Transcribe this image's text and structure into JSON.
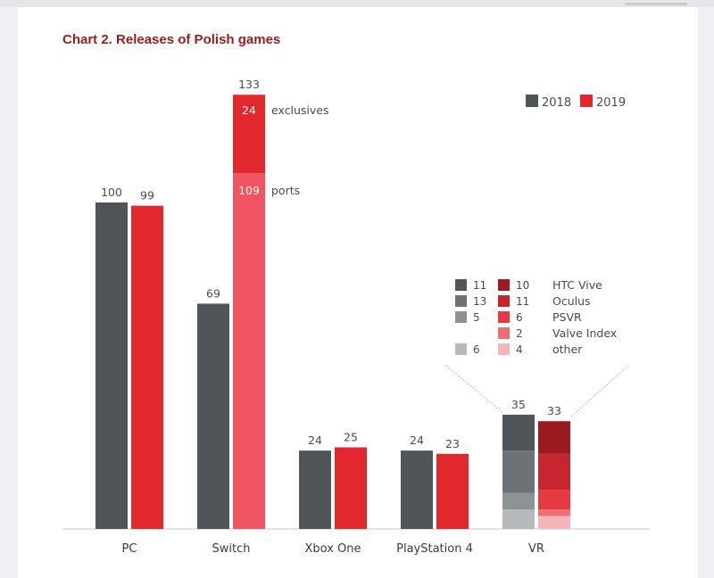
{
  "title": "Chart 2. Releases of Polish games",
  "chart_data": {
    "type": "bar",
    "categories": [
      "PC",
      "Switch",
      "Xbox One",
      "PlayStation 4",
      "VR"
    ],
    "series": [
      {
        "name": "2018",
        "color": "#4f5558",
        "values": [
          100,
          69,
          24,
          24,
          35
        ],
        "labels": [
          "100",
          "69",
          "24",
          "24",
          "35"
        ]
      },
      {
        "name": "2019",
        "color": "#e2272d",
        "values": [
          99,
          133,
          25,
          23,
          33
        ],
        "labels": [
          "99",
          "133",
          "25",
          "23",
          "33"
        ]
      }
    ],
    "switch_2019_breakdown": [
      {
        "name": "ports",
        "value": 109,
        "label": "109",
        "color": "#f25562"
      },
      {
        "name": "exclusives",
        "value": 24,
        "label": "24",
        "color": "#e2272d"
      }
    ],
    "vr_breakdown": {
      "headsets": [
        "HTC Vive",
        "Oculus",
        "PSVR",
        "Valve Index",
        "other"
      ],
      "values_2018": [
        11,
        13,
        5,
        null,
        6
      ],
      "values_2019": [
        10,
        11,
        6,
        2,
        4
      ],
      "labels_2018": [
        "11",
        "13",
        "5",
        "",
        "6"
      ],
      "labels_2019": [
        "10",
        "11",
        "6",
        "2",
        "4"
      ],
      "colors_2018": [
        "#4f5558",
        "#6c7275",
        "#8d9295",
        null,
        "#b6babd"
      ],
      "colors_2019": [
        "#9b1a1f",
        "#c6262d",
        "#e53b40",
        "#ef6e76",
        "#f5b5ba"
      ]
    },
    "ylim": [
      0,
      140
    ],
    "legend": "top-right",
    "grid": false
  }
}
